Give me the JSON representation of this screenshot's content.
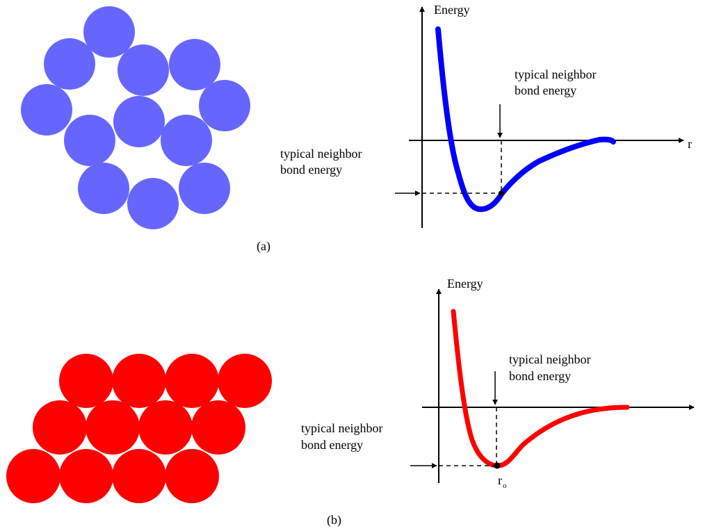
{
  "colors": {
    "atom_a": "#6666ff",
    "atom_b": "#ff0000",
    "curve_a": "#0000ff",
    "curve_b": "#ff0000",
    "axis": "#000000"
  },
  "panel_a": {
    "caption": "(a)",
    "y_axis_label": "Energy",
    "x_axis_label": "r",
    "arrow_label_line1": "typical neighbor",
    "arrow_label_line2": "bond energy",
    "side_label_line1": "typical neighbor",
    "side_label_line2": "bond energy",
    "atom_arrangement": "disordered",
    "atom_count": 12
  },
  "panel_b": {
    "caption": "(b)",
    "y_axis_label": "Energy",
    "r0_label": "r",
    "r0_subscript": "o",
    "arrow_label_line1": "typical neighbor",
    "arrow_label_line2": "bond energy",
    "side_label_line1": "typical neighbor",
    "side_label_line2": "bond energy",
    "atom_arrangement": "close-packed",
    "atom_count": 12
  }
}
